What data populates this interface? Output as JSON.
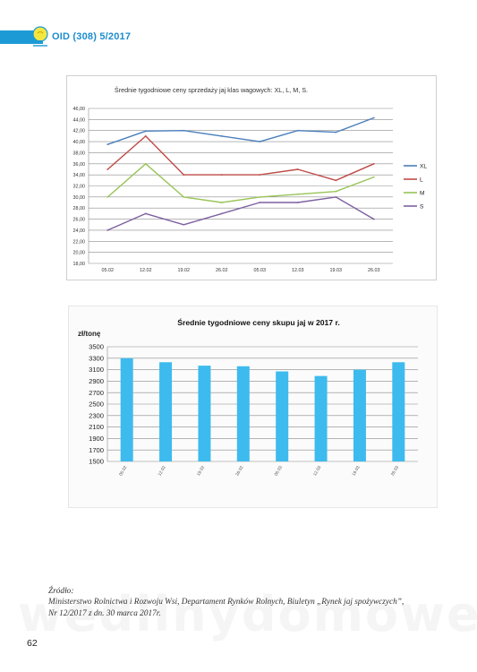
{
  "header": {
    "title": "OID (308) 5/2017",
    "accent_color": "#1c9ad6",
    "logo_icon": "lightbulb-logo-icon"
  },
  "chart_data": [
    {
      "type": "line",
      "title": "Średnie tygodniowe ceny sprzedaży jaj klas wagowych: XL, L, M, S.",
      "categories": [
        "05.02",
        "12.02",
        "19.02",
        "26.02",
        "05.03",
        "12.03",
        "19.03",
        "26.03"
      ],
      "ylim": [
        18,
        46
      ],
      "yticks": [
        "46,00",
        "44,00",
        "42,00",
        "40,00",
        "38,00",
        "36,00",
        "34,00",
        "32,00",
        "30,00",
        "28,00",
        "26,00",
        "24,00",
        "22,00",
        "20,00",
        "18,00"
      ],
      "grid": true,
      "legend_position": "right",
      "series": [
        {
          "name": "XL",
          "color": "#4a7ebb",
          "values": [
            39.5,
            41.9,
            42.0,
            41.0,
            40.0,
            42.0,
            41.7,
            44.3
          ]
        },
        {
          "name": "L",
          "color": "#be4b48",
          "values": [
            35.0,
            41.0,
            34.0,
            34.0,
            34.0,
            35.0,
            33.0,
            36.0
          ]
        },
        {
          "name": "M",
          "color": "#98c457",
          "values": [
            30.0,
            36.0,
            30.0,
            29.0,
            30.0,
            30.5,
            31.0,
            33.6
          ]
        },
        {
          "name": "S",
          "color": "#7d60a0",
          "values": [
            24.0,
            27.0,
            25.0,
            27.0,
            29.0,
            29.0,
            30.0,
            26.0
          ]
        }
      ]
    },
    {
      "type": "bar",
      "title": "Średnie tygodniowe ceny skupu jaj w 2017 r.",
      "ylabel": "zł/tonę",
      "categories": [
        "05.02",
        "12.02",
        "19.02",
        "26.02",
        "05.03",
        "12.03",
        "19.03",
        "26.03"
      ],
      "values": [
        3300,
        3230,
        3170,
        3160,
        3070,
        2990,
        3100,
        3230
      ],
      "ylim": [
        1500,
        3500
      ],
      "yticks": [
        "3500",
        "3300",
        "3100",
        "2900",
        "2700",
        "2500",
        "2300",
        "2100",
        "1900",
        "1700",
        "1500"
      ],
      "grid": true,
      "bar_color": "#3dbbee"
    }
  ],
  "source": {
    "label": "Źródło:",
    "line1": "Ministerstwo Rolnictwa i Rozwoju Wsi, Departament Rynków Rolnych, Biuletyn „Rynek jaj spożywczych”,",
    "line2": "Nr 12/2017 z dn. 30 marca 2017r."
  },
  "watermark": "wedlinydomowe.pl",
  "page_number": "62"
}
